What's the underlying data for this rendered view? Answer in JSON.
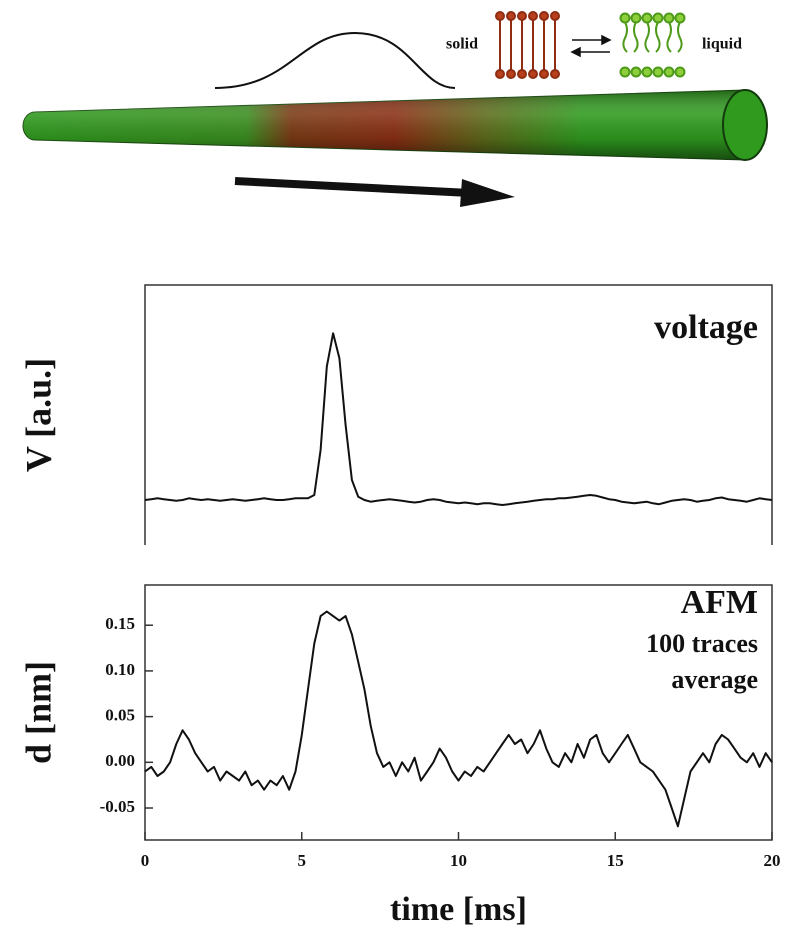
{
  "diagram": {
    "left_label": "solid",
    "right_label": "liquid"
  },
  "chart_data": [
    {
      "type": "line",
      "ylabel": "V [a.u.]",
      "annotations": [
        "voltage"
      ],
      "color": "#111111",
      "xlim": [
        0,
        20
      ],
      "ylim": [
        -0.27,
        1.29
      ],
      "x": [
        0,
        0.2,
        0.4,
        0.6,
        0.8,
        1,
        1.2,
        1.4,
        1.6,
        1.8,
        2,
        2.2,
        2.4,
        2.6,
        2.8,
        3,
        3.2,
        3.4,
        3.6,
        3.8,
        4,
        4.2,
        4.4,
        4.6,
        4.8,
        5,
        5.2,
        5.4,
        5.6,
        5.8,
        6,
        6.2,
        6.4,
        6.6,
        6.8,
        7,
        7.2,
        7.4,
        7.6,
        7.8,
        8,
        8.2,
        8.4,
        8.6,
        8.8,
        9,
        9.2,
        9.4,
        9.6,
        9.8,
        10,
        10.2,
        10.4,
        10.6,
        10.8,
        11,
        11.2,
        11.4,
        11.6,
        11.8,
        12,
        12.2,
        12.4,
        12.6,
        12.8,
        13,
        13.2,
        13.4,
        13.6,
        13.8,
        14,
        14.2,
        14.4,
        14.6,
        14.8,
        15,
        15.2,
        15.4,
        15.6,
        15.8,
        16,
        16.2,
        16.4,
        16.6,
        16.8,
        17,
        17.2,
        17.4,
        17.6,
        17.8,
        18,
        18.2,
        18.4,
        18.6,
        18.8,
        19,
        19.2,
        19.4,
        19.6,
        19.8,
        20
      ],
      "values": [
        0,
        0.005,
        0.01,
        0.005,
        0,
        -0.005,
        0,
        0.01,
        0.005,
        0,
        0.005,
        0,
        -0.005,
        0,
        0.005,
        0,
        -0.005,
        0,
        0.005,
        0.01,
        0.005,
        0,
        0,
        0.005,
        0.01,
        0.01,
        0.01,
        0.03,
        0.3,
        0.8,
        1.0,
        0.85,
        0.45,
        0.12,
        0.02,
        0,
        -0.01,
        -0.005,
        0,
        0.005,
        0,
        -0.005,
        -0.01,
        -0.015,
        -0.01,
        0,
        0.005,
        0,
        -0.01,
        -0.015,
        -0.02,
        -0.015,
        -0.02,
        -0.025,
        -0.02,
        -0.02,
        -0.025,
        -0.03,
        -0.025,
        -0.02,
        -0.015,
        -0.01,
        -0.005,
        0,
        0.005,
        0.005,
        0.01,
        0.01,
        0.015,
        0.02,
        0.025,
        0.03,
        0.025,
        0.015,
        0.005,
        0,
        -0.01,
        -0.015,
        -0.02,
        -0.015,
        -0.01,
        -0.02,
        -0.025,
        -0.015,
        -0.005,
        0,
        0.005,
        0,
        -0.01,
        -0.005,
        0,
        0.01,
        0.015,
        0.005,
        0,
        -0.005,
        -0.01,
        0,
        0.01,
        0.005,
        0
      ]
    },
    {
      "type": "line",
      "ylabel": "d [nm]",
      "xlabel": "time [ms]",
      "annotations": [
        "AFM",
        "100 traces",
        "average"
      ],
      "color": "#111111",
      "xlim": [
        0,
        20
      ],
      "ylim": [
        -0.085,
        0.194
      ],
      "xticks": [
        0,
        5,
        10,
        15,
        20
      ],
      "yticks": [
        -0.05,
        {
          "value": 0,
          "label": "0.00"
        },
        0.05,
        {
          "value": 0.1,
          "label": "0.10"
        },
        0.15
      ],
      "x": [
        0,
        0.2,
        0.4,
        0.6,
        0.8,
        1,
        1.2,
        1.4,
        1.6,
        1.8,
        2,
        2.2,
        2.4,
        2.6,
        2.8,
        3,
        3.2,
        3.4,
        3.6,
        3.8,
        4,
        4.2,
        4.4,
        4.6,
        4.8,
        5,
        5.2,
        5.4,
        5.6,
        5.8,
        6,
        6.2,
        6.4,
        6.6,
        6.8,
        7,
        7.2,
        7.4,
        7.6,
        7.8,
        8,
        8.2,
        8.4,
        8.6,
        8.8,
        9,
        9.2,
        9.4,
        9.6,
        9.8,
        10,
        10.2,
        10.4,
        10.6,
        10.8,
        11,
        11.2,
        11.4,
        11.6,
        11.8,
        12,
        12.2,
        12.4,
        12.6,
        12.8,
        13,
        13.2,
        13.4,
        13.6,
        13.8,
        14,
        14.2,
        14.4,
        14.6,
        14.8,
        15,
        15.2,
        15.4,
        15.6,
        15.8,
        16,
        16.2,
        16.4,
        16.6,
        16.8,
        17,
        17.2,
        17.4,
        17.6,
        17.8,
        18,
        18.2,
        18.4,
        18.6,
        18.8,
        19,
        19.2,
        19.4,
        19.6,
        19.8,
        20
      ],
      "values": [
        -0.01,
        -0.005,
        -0.015,
        -0.01,
        0,
        0.02,
        0.035,
        0.025,
        0.01,
        0,
        -0.01,
        -0.005,
        -0.02,
        -0.01,
        -0.015,
        -0.02,
        -0.01,
        -0.025,
        -0.02,
        -0.03,
        -0.02,
        -0.025,
        -0.015,
        -0.03,
        -0.01,
        0.03,
        0.08,
        0.13,
        0.16,
        0.165,
        0.16,
        0.155,
        0.16,
        0.14,
        0.11,
        0.08,
        0.04,
        0.01,
        -0.005,
        0,
        -0.015,
        0,
        -0.01,
        0.005,
        -0.02,
        -0.01,
        0,
        0.015,
        0.005,
        -0.01,
        -0.02,
        -0.01,
        -0.015,
        -0.005,
        -0.01,
        0,
        0.01,
        0.02,
        0.03,
        0.02,
        0.025,
        0.01,
        0.02,
        0.035,
        0.015,
        0,
        -0.005,
        0.01,
        0,
        0.02,
        0.005,
        0.025,
        0.03,
        0.01,
        0,
        0.01,
        0.02,
        0.03,
        0.015,
        0,
        -0.005,
        -0.01,
        -0.02,
        -0.03,
        -0.05,
        -0.07,
        -0.04,
        -0.01,
        0,
        0.01,
        0,
        0.02,
        0.03,
        0.025,
        0.015,
        0.005,
        0,
        0.01,
        -0.005,
        0.01,
        0
      ]
    }
  ]
}
